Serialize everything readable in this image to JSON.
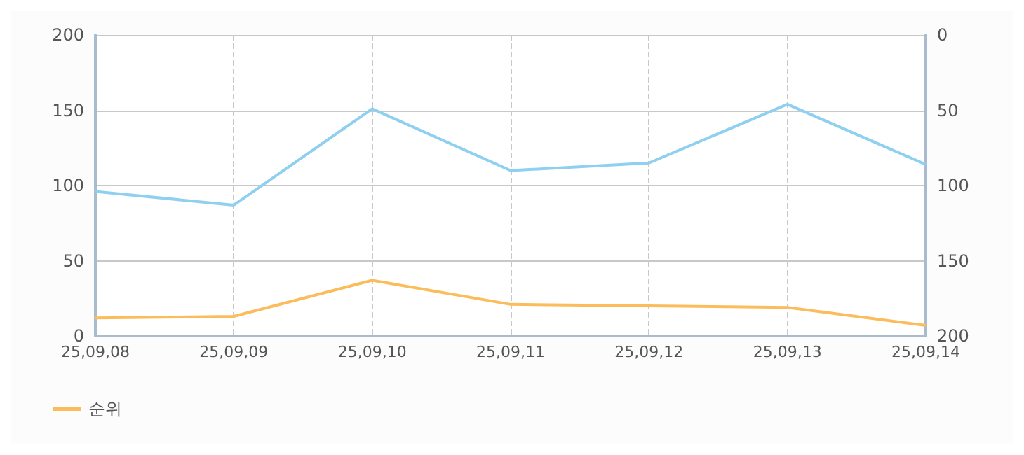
{
  "chart_data": {
    "type": "line",
    "categories": [
      "25,09,08",
      "25,09,09",
      "25,09,10",
      "25,09,11",
      "25,09,12",
      "25,09,13",
      "25,09,14"
    ],
    "series": [
      {
        "color": "#8fd0f0",
        "values": [
          96,
          87,
          151,
          110,
          115,
          154,
          114
        ]
      },
      {
        "name": "순위",
        "color": "#fbbd5c",
        "axis": "y2",
        "values": [
          188,
          187,
          163,
          179,
          180,
          181,
          193
        ]
      }
    ],
    "ylim": [
      0,
      200
    ],
    "yticks": [
      0,
      50,
      100,
      150,
      200
    ],
    "y2lim": [
      200,
      0
    ],
    "y2ticks": [
      0,
      50,
      100,
      150,
      200
    ],
    "grid": true,
    "legend": "bottom left",
    "marker": "none",
    "line_style": "solid"
  }
}
